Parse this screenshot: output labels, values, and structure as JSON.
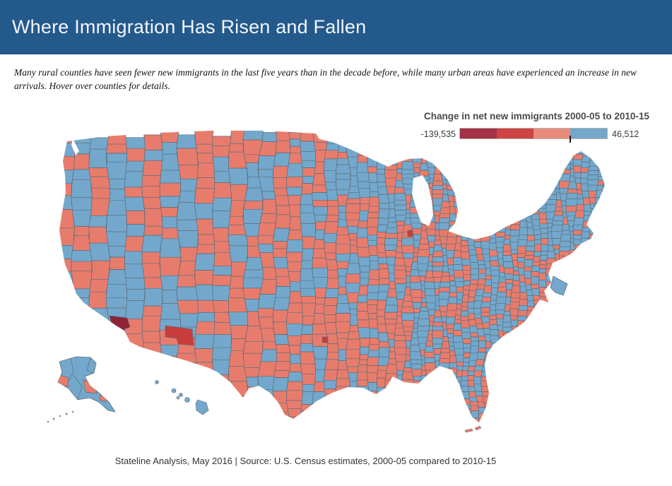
{
  "header": {
    "title": "Where Immigration Has Risen and Fallen",
    "background_color": "#24598C",
    "text_color": "#F2F6FA"
  },
  "subtitle": "Many rural counties have seen fewer new immigrants in the last five years than in the decade before, while many urban areas have experienced an increase in new arrivals. Hover over counties for details.",
  "legend": {
    "title": "Change in net new immigrants 2000-05 to 2010-15",
    "min_label": "-139,535",
    "max_label": "46,512",
    "segment_colors": [
      "#A43148",
      "#CE4444",
      "#E98B7A",
      "#73A8CC"
    ],
    "zero_tick_fraction": 0.75
  },
  "footer": "Stateline Analysis, May 2016 | Source: U.S. Census estimates, 2000-05 compared to 2010-15",
  "chart_data": {
    "type": "choropleth_map",
    "title": "Change in net new immigrants 2000-05 to 2010-15",
    "geography": "United States counties (continental US, Alaska, Hawaii, enlarged Washington D.C.)",
    "value_range": [
      -139535,
      46512
    ],
    "legend_ticks": [
      "-139,535",
      "46,512"
    ],
    "encoding": "red shades = fewer net new immigrants in 2010-15 than 2000-05; blue = increase",
    "colors": {
      "decrease": "#E87C6C",
      "decrease_strong": "#C93C3C",
      "decrease_strongest": "#8E2237",
      "increase": "#73A8CC",
      "county_border": "#5C6B79",
      "water": "#FFFFFF"
    },
    "highlights": [
      {
        "region": "southern-california-metro",
        "shade": "#8E2237"
      },
      {
        "region": "central-arizona-metro",
        "shade": "#C93C3C"
      },
      {
        "region": "north-texas-metro",
        "shade": "#C93C3C"
      },
      {
        "region": "southeast-wisconsin-metro",
        "shade": "#C93C3C"
      }
    ],
    "seed": 20160501
  }
}
